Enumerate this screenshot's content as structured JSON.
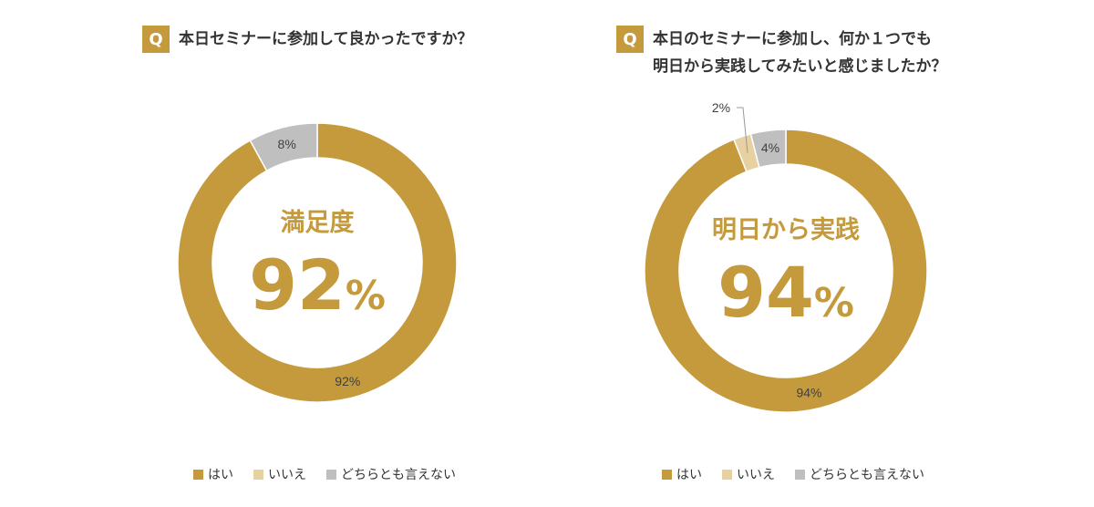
{
  "legend": [
    "はい",
    "いいえ",
    "どちらとも言えない"
  ],
  "colors": {
    "yes": "#C49A3C",
    "no": "#E8D1A0",
    "neutral": "#BFBFBF",
    "accent": "#C49A3C"
  },
  "chart_data": [
    {
      "type": "pie",
      "variant": "donut",
      "question_badge": "Q",
      "title": "本日セミナーに参加して良かったですか？",
      "categories": [
        "はい",
        "いいえ",
        "どちらとも言えない"
      ],
      "values": [
        92,
        0,
        8
      ],
      "data_labels": [
        "92%",
        "",
        "8%"
      ],
      "center_label": "満足度",
      "center_value": "92",
      "center_unit": "%",
      "legend_position": "bottom"
    },
    {
      "type": "pie",
      "variant": "donut",
      "question_badge": "Q",
      "title": "本日のセミナーに参加し、何か１つでも\n明日から実践してみたいと感じましたか？",
      "categories": [
        "はい",
        "いいえ",
        "どちらとも言えない"
      ],
      "values": [
        94,
        2,
        4
      ],
      "data_labels": [
        "94%",
        "2%",
        "4%"
      ],
      "center_label": "明日から実践",
      "center_value": "94",
      "center_unit": "%",
      "legend_position": "bottom"
    }
  ]
}
